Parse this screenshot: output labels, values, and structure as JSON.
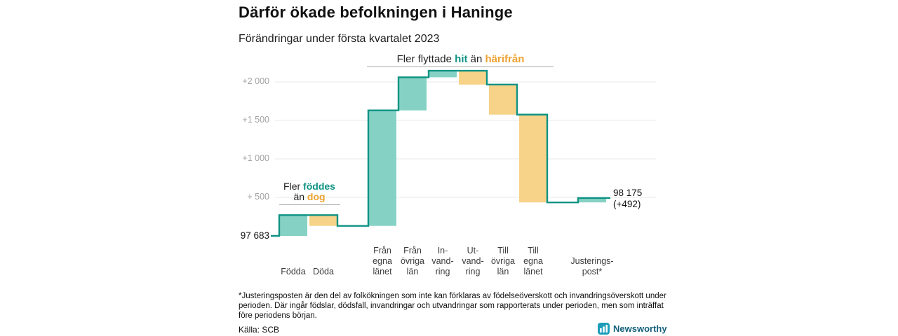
{
  "header": {
    "title": "Därför ökade befolkningen i Haninge",
    "subtitle": "Förändringar under första kvartalet 2023"
  },
  "chart_data": {
    "type": "waterfall-bar",
    "start_label": "97 683",
    "start_value": 97683,
    "end_label": "98 175",
    "end_change_label": "(+492)",
    "end_value": 98175,
    "total_change": 492,
    "y_ticks": [
      {
        "value": 500,
        "label": "+ 500"
      },
      {
        "value": 1000,
        "label": "+1 000"
      },
      {
        "value": 1500,
        "label": "+1 500"
      },
      {
        "value": 2000,
        "label": "+2 000"
      }
    ],
    "steps": [
      {
        "label": "Födda",
        "label_lines": [
          "Födda"
        ],
        "value": 270,
        "gap_before": false
      },
      {
        "label": "Döda",
        "label_lines": [
          "Döda"
        ],
        "value": -140,
        "gap_before": false
      },
      {
        "label": "Från egna länet",
        "label_lines": [
          "Från",
          "egna",
          "länet"
        ],
        "value": 1500,
        "gap_before": true
      },
      {
        "label": "Från övriga län",
        "label_lines": [
          "Från",
          "övriga",
          "län"
        ],
        "value": 430,
        "gap_before": false
      },
      {
        "label": "Invandring",
        "label_lines": [
          "In-",
          "vand-",
          "ring"
        ],
        "value": 85,
        "gap_before": false
      },
      {
        "label": "Utvandring",
        "label_lines": [
          "Ut-",
          "vand-",
          "ring"
        ],
        "value": -180,
        "gap_before": false
      },
      {
        "label": "Till övriga län",
        "label_lines": [
          "Till",
          "övriga",
          "län"
        ],
        "value": -390,
        "gap_before": false
      },
      {
        "label": "Till egna länet",
        "label_lines": [
          "Till",
          "egna",
          "länet"
        ],
        "value": -1140,
        "gap_before": false
      },
      {
        "label": "Justeringspost*",
        "label_lines": [
          "Justerings-",
          "post*"
        ],
        "value": 57,
        "gap_before": true
      }
    ],
    "annotations": {
      "births": {
        "lines": [
          [
            {
              "text": "Fler "
            },
            {
              "text": "föddes",
              "color": "teal_text"
            }
          ],
          [
            {
              "text": "än "
            },
            {
              "text": "dog",
              "color": "orange_text"
            }
          ]
        ]
      },
      "migration": {
        "lines": [
          [
            {
              "text": "Fler flyttade "
            },
            {
              "text": "hit",
              "color": "teal_text"
            },
            {
              "text": " än "
            },
            {
              "text": "härifrån",
              "color": "orange_text"
            }
          ]
        ]
      }
    },
    "colors": {
      "positive_fill": "#85d2c5",
      "negative_fill": "#f6d388",
      "line": "#0f9384",
      "teal_text": "#0f9384",
      "orange_text": "#eda22f",
      "grid": "#e8e8e8",
      "axis_text": "#a3a3a3"
    }
  },
  "footnote": "*Justeringsposten är den del av folkökningen som inte kan förklaras av födelseöverskott och invandringsöverskott under perioden. Där ingår födslar, dödsfall, invandringar och utvandringar som rapporterats under perioden, men som inträffat före periodens början.",
  "source": "Källa: SCB",
  "logo": {
    "text": "Newsworthy"
  }
}
